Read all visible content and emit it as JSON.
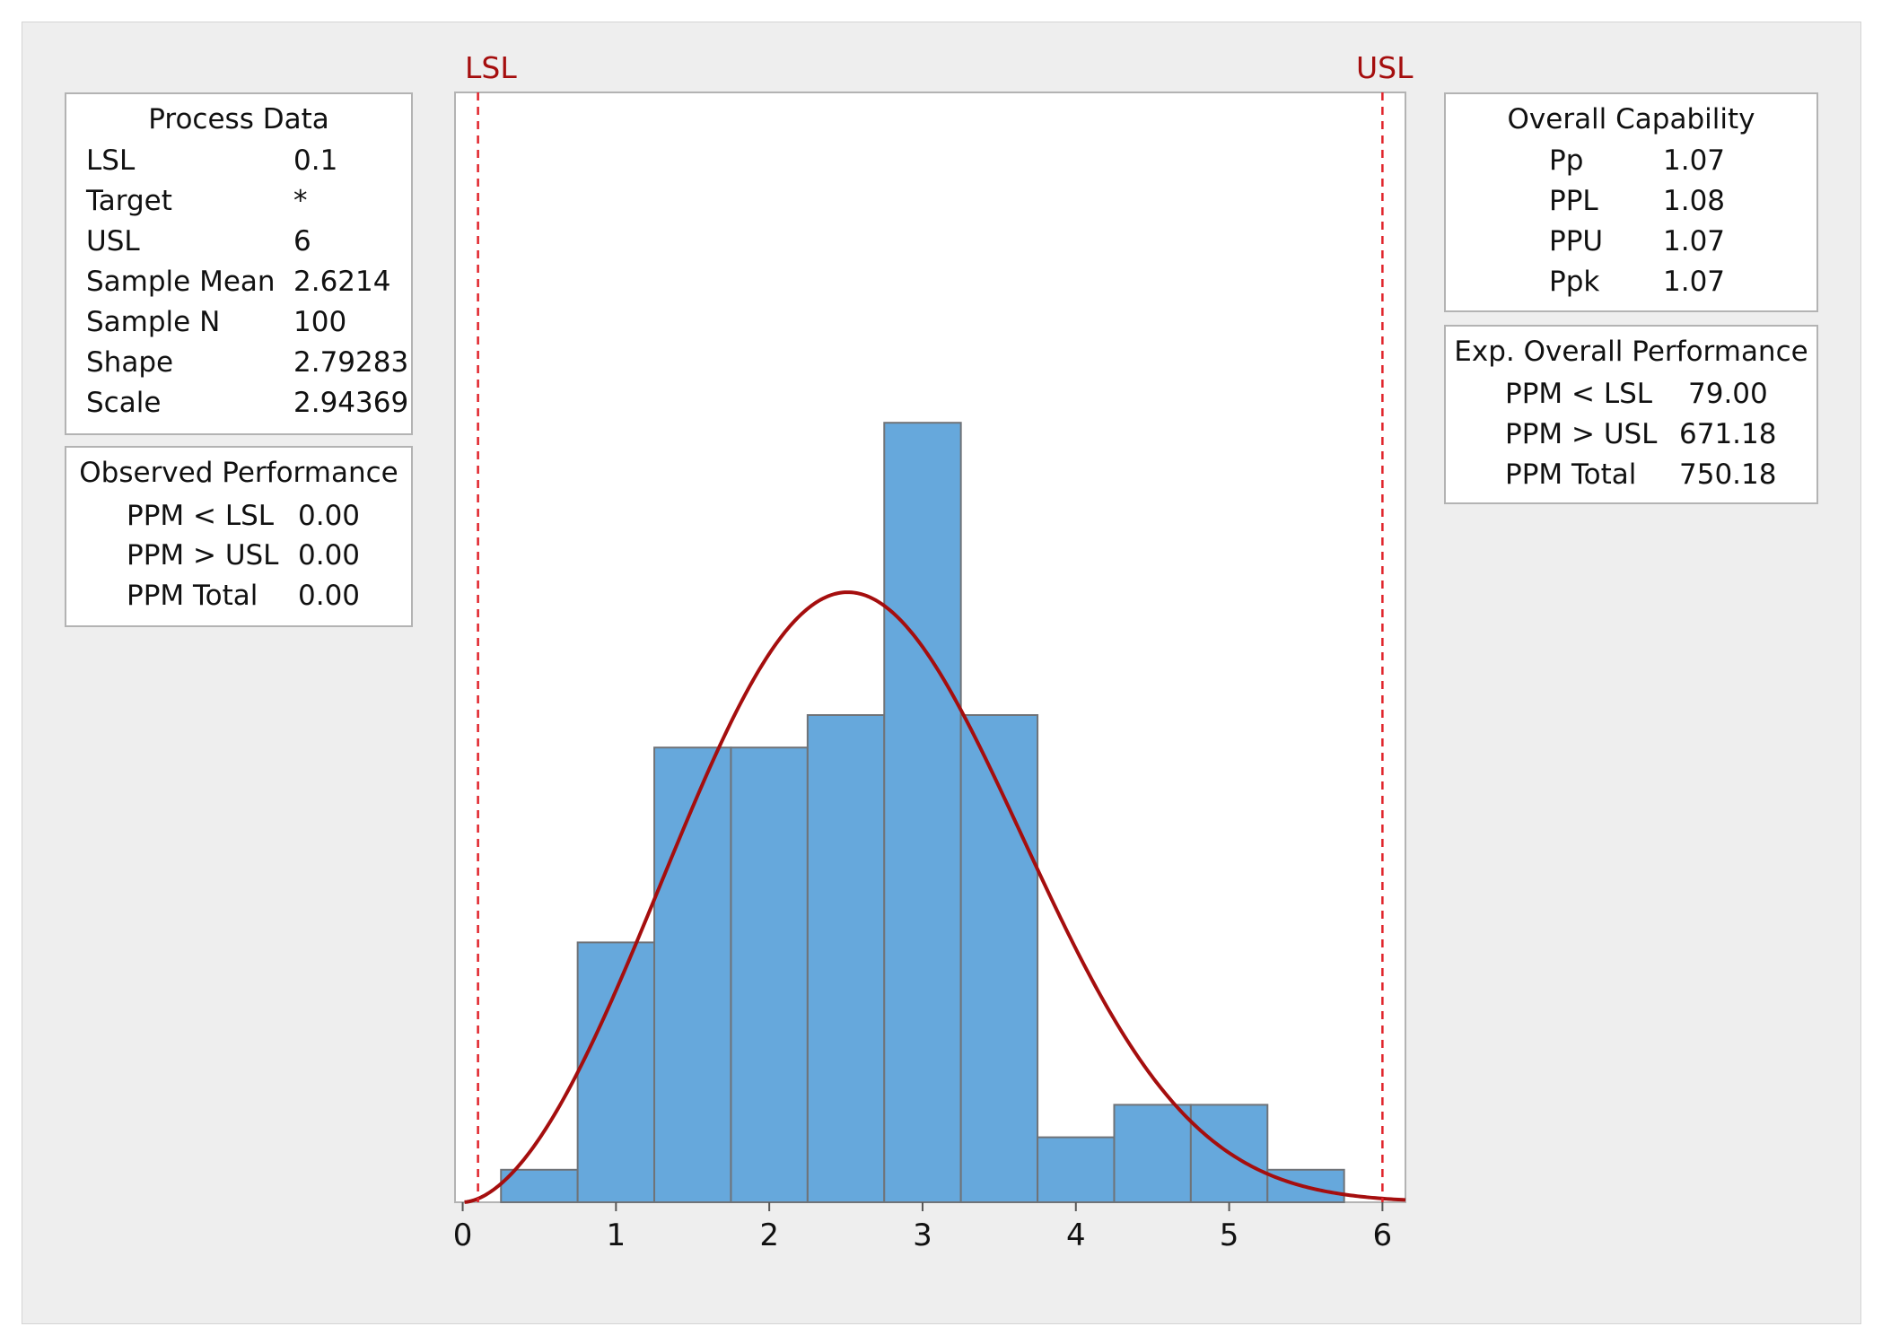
{
  "process_data": {
    "title": "Process Data",
    "rows": [
      {
        "label": "LSL",
        "value": "0.1"
      },
      {
        "label": "Target",
        "value": "*"
      },
      {
        "label": "USL",
        "value": "6"
      },
      {
        "label": "Sample Mean",
        "value": "2.6214"
      },
      {
        "label": "Sample N",
        "value": "100"
      },
      {
        "label": "Shape",
        "value": "2.79283"
      },
      {
        "label": "Scale",
        "value": "2.94369"
      }
    ]
  },
  "observed_performance": {
    "title": "Observed Performance",
    "rows": [
      {
        "label": "PPM < LSL",
        "value": "0.00"
      },
      {
        "label": "PPM > USL",
        "value": "0.00"
      },
      {
        "label": "PPM Total",
        "value": "0.00"
      }
    ]
  },
  "overall_capability": {
    "title": "Overall Capability",
    "rows": [
      {
        "label": "Pp",
        "value": "1.07"
      },
      {
        "label": "PPL",
        "value": "1.08"
      },
      {
        "label": "PPU",
        "value": "1.07"
      },
      {
        "label": "Ppk",
        "value": "1.07"
      }
    ]
  },
  "exp_overall_performance": {
    "title": "Exp. Overall Performance",
    "rows": [
      {
        "label": "PPM < LSL",
        "value": "79.00"
      },
      {
        "label": "PPM > USL",
        "value": "671.18"
      },
      {
        "label": "PPM Total",
        "value": "750.18"
      }
    ]
  },
  "spec_labels": {
    "lsl": "LSL",
    "usl": "USL"
  },
  "colors": {
    "bar_fill": "#66a8dc",
    "bar_edge": "#6f7378",
    "curve": "#a50e0e",
    "spec_line": "#e0232a",
    "spec_text": "#a50e0e"
  },
  "chart_data": {
    "type": "bar",
    "x_range": [
      -0.05,
      6.15
    ],
    "x_ticks": [
      0,
      1,
      2,
      3,
      4,
      5,
      6
    ],
    "bin_edges": [
      0.25,
      0.75,
      1.25,
      1.75,
      2.25,
      2.75,
      3.25,
      3.75,
      4.25,
      4.75,
      5.25,
      5.75
    ],
    "counts": [
      1,
      8,
      14,
      14,
      15,
      24,
      15,
      2,
      3,
      3,
      1
    ],
    "lsl": 0.1,
    "usl": 6,
    "fit_curve": {
      "distribution": "weibull",
      "shape": 2.79283,
      "scale": 2.94369,
      "n": 100,
      "bin_width": 0.5
    },
    "legend": "none",
    "grid": false
  }
}
